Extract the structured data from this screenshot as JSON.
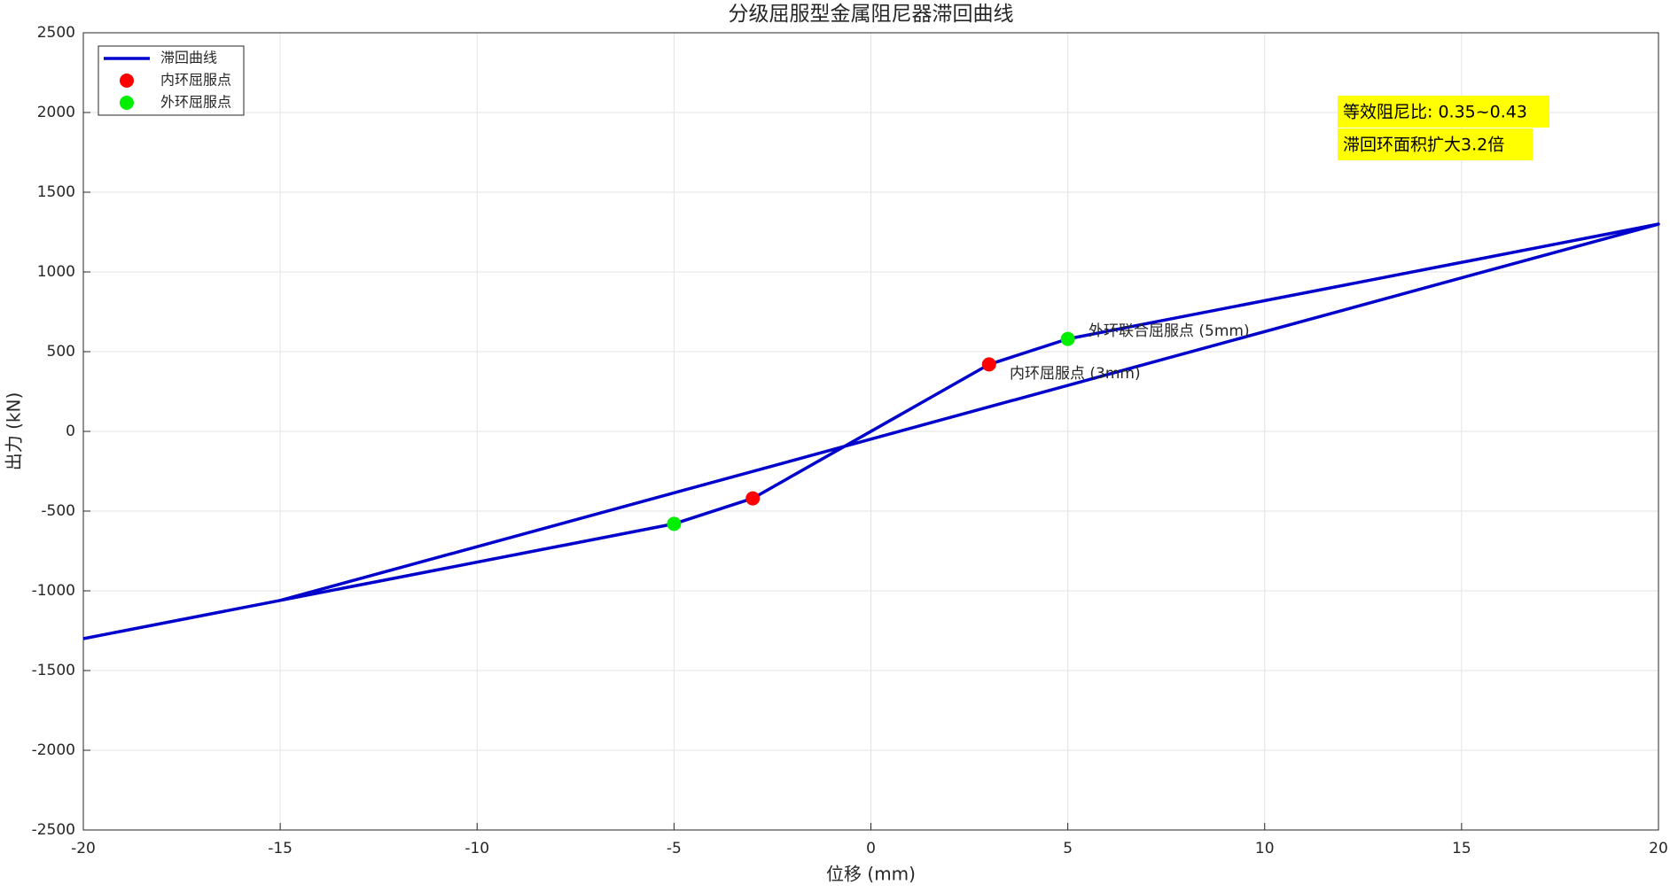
{
  "chart_data": {
    "type": "line",
    "title": "分级屈服型金属阻尼器滞回曲线",
    "xlabel": "位移 (mm)",
    "ylabel": "出力 (kN)",
    "xlim": [
      -20,
      20
    ],
    "xticks": [
      -20,
      -15,
      -10,
      -5,
      0,
      5,
      10,
      15,
      20
    ],
    "ylim": [
      -2500,
      2500
    ],
    "yticks": [
      -2500,
      -2000,
      -1500,
      -1000,
      -500,
      0,
      500,
      1000,
      1500,
      2000,
      2500
    ],
    "grid": true,
    "legend": "northwest",
    "series": [
      {
        "name": "滞回曲线",
        "color": "#0000cc",
        "mode": "line",
        "x": [
          -20,
          -15,
          20,
          5,
          3,
          -3,
          -5,
          -15
        ],
        "values": [
          -1300,
          -1060,
          1300,
          580,
          420,
          -420,
          -580,
          -1060
        ]
      },
      {
        "name": "内环屈服点",
        "color": "#ff0000",
        "mode": "marker",
        "x": [
          3,
          -3
        ],
        "values": [
          420,
          -420
        ]
      },
      {
        "name": "外环屈服点",
        "color": "#00ee00",
        "mode": "marker",
        "x": [
          5,
          -5
        ],
        "values": [
          580,
          -580
        ]
      }
    ],
    "annotations": [
      "外环联合屈服点 (5mm)",
      "内环屈服点 (3mm)"
    ],
    "textbox": [
      "等效阻尼比: 0.35~0.43",
      "滞回环面积扩大3.2倍"
    ]
  }
}
